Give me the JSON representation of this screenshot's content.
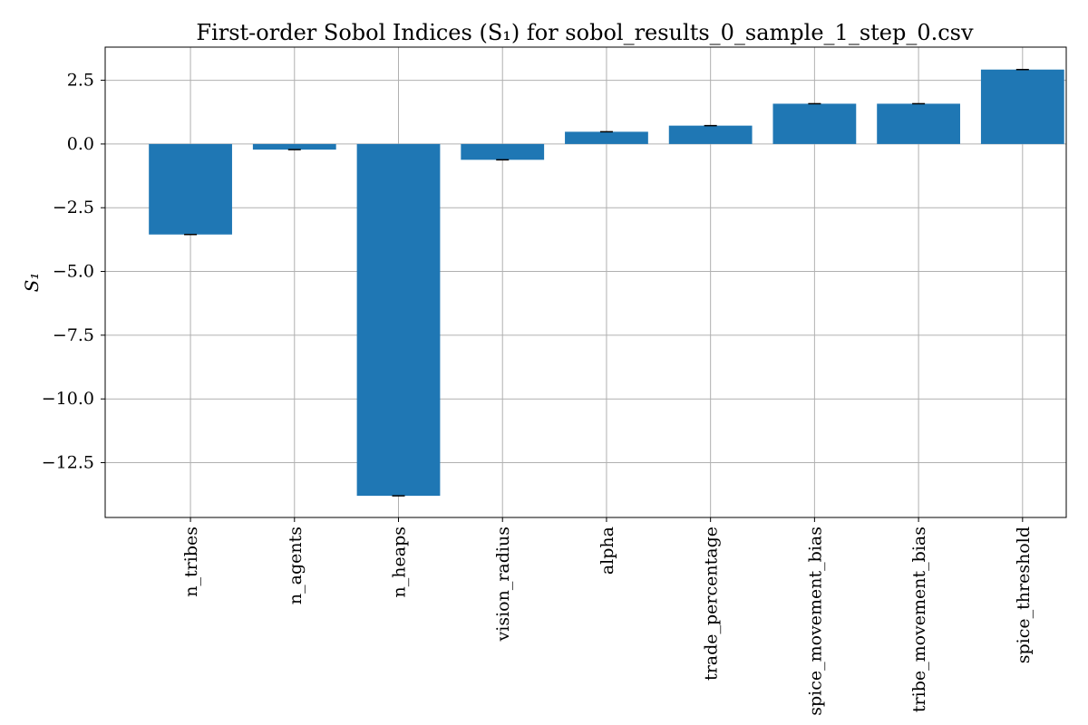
{
  "chart_data": {
    "type": "bar",
    "title": "First-order Sobol Indices ($S_1$) for sobol_results_0_sample_1_step_0.csv",
    "title_display": "First-order Sobol Indices (S₁) for sobol_results_0_sample_1_step_0.csv",
    "ylabel": "S₁",
    "xlabel": "",
    "categories": [
      "n_tribes",
      "n_agents",
      "n_heaps",
      "vision_radius",
      "alpha",
      "trade_percentage",
      "spice_movement_bias",
      "tribe_movement_bias",
      "spice_threshold"
    ],
    "values": [
      -3.55,
      -0.22,
      -13.8,
      -0.62,
      0.48,
      0.72,
      1.58,
      1.58,
      2.92
    ],
    "ylim": [
      -14.65,
      3.8
    ],
    "yticks": [
      2.5,
      0.0,
      -2.5,
      -5.0,
      -7.5,
      -10.0,
      -12.5
    ],
    "ytick_labels": [
      "2.5",
      "0.0",
      "−2.5",
      "−5.0",
      "−7.5",
      "−10.0",
      "−12.5"
    ],
    "grid": true,
    "bar_color": "#1f77b4",
    "error_bars": true
  }
}
